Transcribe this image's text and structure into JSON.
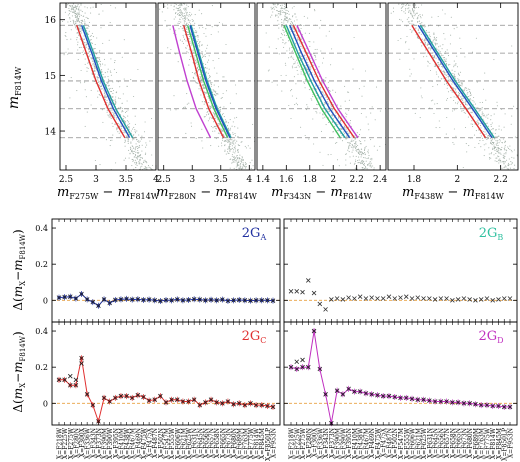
{
  "chart_data": [
    {
      "type": "scatter",
      "panel": "cmd-1",
      "xlabel": "m F275W − m F814W",
      "ylabel": "m F814W",
      "xlim": [
        2.4,
        4.0
      ],
      "ylim": [
        16.3,
        13.3
      ],
      "xticks": [
        2.5,
        3,
        3.5,
        4
      ],
      "yticks": [
        14,
        15,
        16
      ],
      "hlines": [
        13.88,
        14.4,
        14.9,
        15.4,
        15.9
      ],
      "series": [
        {
          "color": "#e03030",
          "x": [
            2.68,
            2.84,
            3.0,
            3.2,
            3.48
          ],
          "y": [
            15.9,
            15.4,
            14.9,
            14.4,
            13.88
          ]
        },
        {
          "color": "#2050c0",
          "x": [
            2.76,
            2.93,
            3.09,
            3.29,
            3.56
          ],
          "y": [
            15.9,
            15.4,
            14.9,
            14.4,
            13.88
          ]
        },
        {
          "color": "#20a0a0",
          "x": [
            2.79,
            2.96,
            3.12,
            3.33,
            3.61
          ],
          "y": [
            15.9,
            15.4,
            14.9,
            14.4,
            13.88
          ]
        }
      ]
    },
    {
      "type": "scatter",
      "panel": "cmd-2",
      "xlabel": "m F280N − m F814W",
      "xlim": [
        2.4,
        4.1
      ],
      "ylim": [
        16.3,
        13.3
      ],
      "xticks": [
        2.5,
        3,
        3.5,
        4
      ],
      "hlines": [
        13.88,
        14.4,
        14.9,
        15.4,
        15.9
      ],
      "series": [
        {
          "color": "#c040d0",
          "x": [
            2.66,
            2.78,
            2.91,
            3.07,
            3.32
          ],
          "y": [
            15.9,
            15.4,
            14.9,
            14.4,
            13.88
          ]
        },
        {
          "color": "#e03030",
          "x": [
            2.85,
            2.99,
            3.12,
            3.29,
            3.55
          ],
          "y": [
            15.9,
            15.4,
            14.9,
            14.4,
            13.88
          ]
        },
        {
          "color": "#40c060",
          "x": [
            2.92,
            3.06,
            3.2,
            3.38,
            3.62
          ],
          "y": [
            15.9,
            15.4,
            14.9,
            14.4,
            13.88
          ]
        },
        {
          "color": "#20a0a0",
          "x": [
            2.98,
            3.12,
            3.26,
            3.44,
            3.68
          ],
          "y": [
            15.9,
            15.4,
            14.9,
            14.4,
            13.88
          ]
        },
        {
          "color": "#2050c0",
          "x": [
            2.96,
            3.1,
            3.24,
            3.42,
            3.66
          ],
          "y": [
            15.9,
            15.4,
            14.9,
            14.4,
            13.88
          ]
        }
      ]
    },
    {
      "type": "scatter",
      "panel": "cmd-3",
      "xlabel": "m F343N − m F814W",
      "xlim": [
        1.35,
        2.45
      ],
      "ylim": [
        16.3,
        13.3
      ],
      "xticks": [
        1.4,
        1.6,
        1.8,
        2,
        2.2,
        2.4
      ],
      "hlines": [
        13.88,
        14.4,
        14.9,
        15.4,
        15.9
      ],
      "series": [
        {
          "color": "#40c060",
          "x": [
            1.58,
            1.68,
            1.78,
            1.9,
            2.06
          ],
          "y": [
            15.9,
            15.4,
            14.9,
            14.4,
            13.88
          ]
        },
        {
          "color": "#20a0a0",
          "x": [
            1.6,
            1.7,
            1.81,
            1.93,
            2.1
          ],
          "y": [
            15.9,
            15.4,
            14.9,
            14.4,
            13.88
          ]
        },
        {
          "color": "#2050c0",
          "x": [
            1.63,
            1.73,
            1.84,
            1.97,
            2.14
          ],
          "y": [
            15.9,
            15.4,
            14.9,
            14.4,
            13.88
          ]
        },
        {
          "color": "#e03030",
          "x": [
            1.66,
            1.77,
            1.88,
            2.01,
            2.18
          ],
          "y": [
            15.9,
            15.4,
            14.9,
            14.4,
            13.88
          ]
        },
        {
          "color": "#c040d0",
          "x": [
            1.69,
            1.8,
            1.91,
            2.04,
            2.21
          ],
          "y": [
            15.9,
            15.4,
            14.9,
            14.4,
            13.88
          ]
        }
      ]
    },
    {
      "type": "scatter",
      "panel": "cmd-4",
      "xlabel": "m F438W − m F814W",
      "xlim": [
        1.68,
        2.28
      ],
      "ylim": [
        16.3,
        13.3
      ],
      "xticks": [
        1.8,
        2,
        2.2
      ],
      "hlines": [
        13.88,
        14.4,
        14.9,
        15.4,
        15.9
      ],
      "series": [
        {
          "color": "#e03030",
          "x": [
            1.79,
            1.87,
            1.95,
            2.04,
            2.13
          ],
          "y": [
            15.9,
            15.4,
            14.9,
            14.4,
            13.88
          ]
        },
        {
          "color": "#2050c0",
          "x": [
            1.82,
            1.9,
            1.98,
            2.07,
            2.16
          ],
          "y": [
            15.9,
            15.4,
            14.9,
            14.4,
            13.88
          ]
        },
        {
          "color": "#20a0a0",
          "x": [
            1.83,
            1.91,
            1.99,
            2.08,
            2.17
          ],
          "y": [
            15.9,
            15.4,
            14.9,
            14.4,
            13.88
          ]
        }
      ]
    },
    {
      "type": "line",
      "panel": "delta",
      "ylabel": "Δ(m X − m F814W)",
      "ylim": [
        -0.12,
        0.45
      ],
      "yticks": [
        0,
        0.2,
        0.4
      ],
      "categories": [
        "F218W",
        "F225W",
        "F275W",
        "F280N",
        "F300X",
        "F336W",
        "F343N",
        "F373N",
        "F390M",
        "F390W",
        "F395N",
        "F410M",
        "F438W",
        "F467M",
        "F469N",
        "F475W",
        "F475X",
        "F487N",
        "F502N",
        "F547M",
        "F555W",
        "F606W",
        "F621M",
        "F625W",
        "F631N",
        "F645N",
        "F656N",
        "F657N",
        "F658N",
        "F665N",
        "F673N",
        "F680N",
        "F689M",
        "F763M",
        "F775W",
        "F814W",
        "F845M",
        "F850LP",
        "F953N"
      ],
      "series": [
        {
          "name": "2G A",
          "color": "#2030a0",
          "values": [
            0.015,
            0.018,
            0.02,
            0.01,
            0.035,
            0.005,
            -0.01,
            -0.03,
            0.005,
            -0.015,
            0.002,
            0.005,
            0.008,
            0.004,
            0.006,
            0.002,
            0.004,
            0.0,
            -0.004,
            0.001,
            0.0,
            0.005,
            0.0,
            0.002,
            0.006,
            0.004,
            0.0,
            0.003,
            0.0,
            0.004,
            -0.003,
            0.0,
            0.002,
            0.0,
            -0.002,
            0.0,
            0.0,
            0.0,
            -0.002
          ]
        },
        {
          "name": "2G B",
          "color": "#30c0a0",
          "values": [
            0.05,
            0.05,
            0.045,
            0.11,
            0.04,
            -0.02,
            -0.05,
            0.005,
            0.01,
            0.005,
            0.015,
            0.01,
            0.02,
            0.01,
            0.015,
            0.01,
            0.01,
            0.02,
            0.01,
            0.015,
            0.02,
            0.01,
            0.015,
            0.01,
            0.01,
            0.005,
            0.01,
            0.01,
            0.0,
            0.005,
            0.01,
            0.005,
            0.0,
            0.005,
            0.01,
            0.0,
            0.005,
            0.01,
            0.01
          ]
        },
        {
          "name": "2G C",
          "color": "#e03030",
          "values": [
            0.13,
            0.13,
            0.1,
            0.1,
            0.25,
            0.05,
            -0.01,
            -0.1,
            0.03,
            0.01,
            0.03,
            0.04,
            0.04,
            0.03,
            0.045,
            0.035,
            0.015,
            0.02,
            0.04,
            0.005,
            0.02,
            0.02,
            0.01,
            0.01,
            0.02,
            -0.01,
            0.005,
            0.02,
            0.005,
            0.0,
            0.01,
            -0.005,
            0.0,
            -0.01,
            0.0,
            -0.01,
            -0.01,
            -0.015,
            -0.02
          ]
        },
        {
          "name": "2G D",
          "color": "#c030c0",
          "values": [
            0.2,
            0.19,
            0.2,
            0.2,
            0.4,
            0.19,
            0.05,
            -0.11,
            0.07,
            0.05,
            0.08,
            0.065,
            0.065,
            0.055,
            0.05,
            0.045,
            0.04,
            0.04,
            0.035,
            0.03,
            0.03,
            0.025,
            0.02,
            0.02,
            0.015,
            0.01,
            0.01,
            0.01,
            0.005,
            0.005,
            0.0,
            0.0,
            -0.005,
            -0.01,
            -0.01,
            -0.015,
            -0.015,
            -0.02,
            -0.02
          ]
        }
      ],
      "extra_points": [
        {
          "series": "2G C",
          "x": 2,
          "y": 0.15
        },
        {
          "series": "2G C",
          "x": 3,
          "y": 0.13
        },
        {
          "series": "2G C",
          "x": 4,
          "y": 0.22
        },
        {
          "series": "2G D",
          "x": 1,
          "y": 0.23
        },
        {
          "series": "2G D",
          "x": 2,
          "y": 0.24
        }
      ]
    }
  ],
  "panel_labels": {
    "a_main": "2G",
    "a_sub": "A",
    "b_main": "2G",
    "b_sub": "B",
    "c_main": "2G",
    "c_sub": "C",
    "d_main": "2G",
    "d_sub": "D"
  },
  "axis_text": {
    "ylab_cmd_m": "m",
    "ylab_cmd_sub": "F814W",
    "d_prefix": "Δ(",
    "d_m1": "m",
    "d_sub1": "X",
    "d_minus": "−",
    "d_m2": "m",
    "d_sub2": "F814W",
    "d_close": ")"
  },
  "colors": {
    "scatter_points": "#a8b4ac",
    "dashed_lines": "#8c8c8c",
    "zero_line": "#e8a040"
  }
}
